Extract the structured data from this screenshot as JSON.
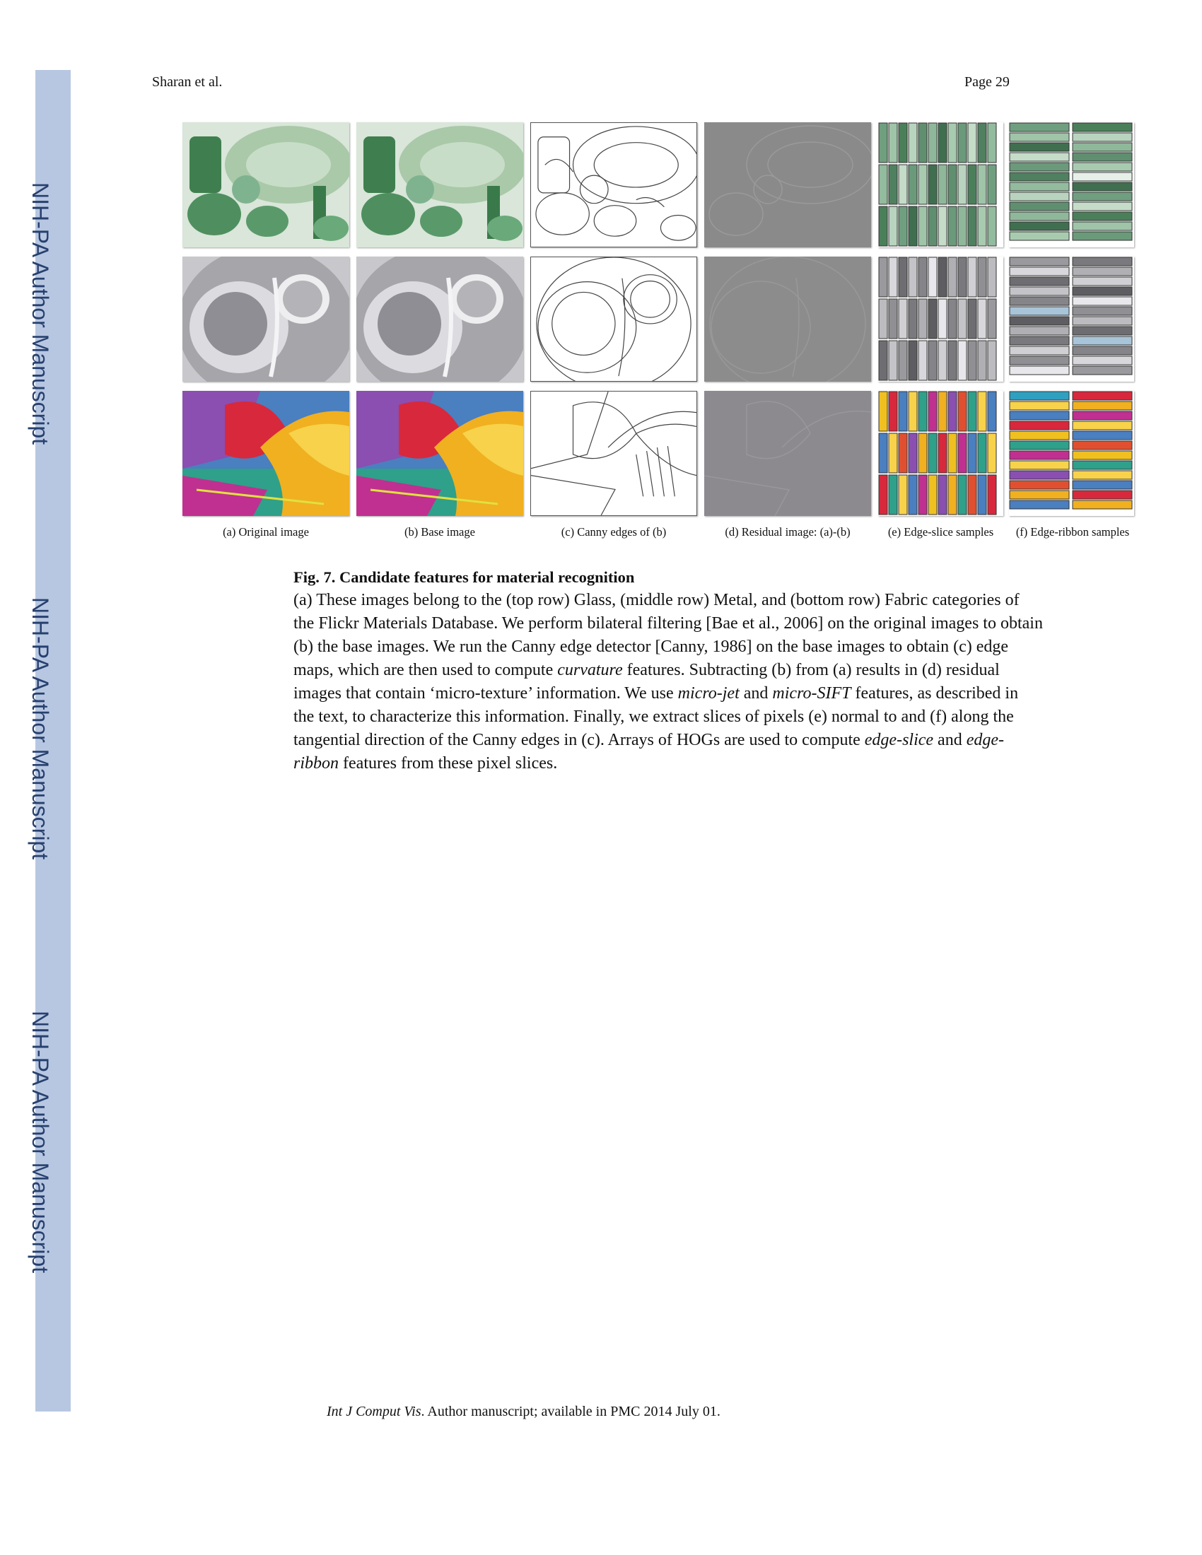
{
  "sidebar": {
    "labels": [
      "NIH-PA Author Manuscript",
      "NIH-PA Author Manuscript",
      "NIH-PA Author Manuscript"
    ],
    "band_color": "#b7c7e2",
    "text_color": "#27406e"
  },
  "header": {
    "authors": "Sharan et al.",
    "page": "Page 29"
  },
  "figure": {
    "rows": [
      "Glass",
      "Metal",
      "Fabric"
    ],
    "panel_labels": [
      "(a) Original image",
      "(b) Base image",
      "(c) Canny edges of (b)",
      "(d) Residual image: (a)-(b)",
      "(e) Edge-slice samples",
      "(f) Edge-ribbon samples"
    ]
  },
  "caption": {
    "title": "Fig. 7. Candidate features for material recognition",
    "segments": [
      "(a) These images belong to the (top row) Glass, (middle row) Metal, and (bottom row) Fabric categories of the Flickr Materials Database. We perform bilateral filtering [Bae et al., 2006] on the original images to obtain (b) the base images. We run the Canny edge detector [Canny, 1986] on the base images to obtain (c) edge maps, which are then used to compute ",
      "curvature",
      " features. Subtracting (b) from (a) results in (d) residual images that contain ‘micro-texture’ information. We use ",
      "micro-jet",
      " and ",
      "micro-SIFT",
      " features, as described in the text, to characterize this information. Finally, we extract slices of pixels (e) normal to and (f) along the tangential direction of the Canny edges in (c). Arrays of HOGs are used to compute ",
      "edge-slice",
      " and ",
      "edge-ribbon",
      " features from these pixel slices."
    ]
  },
  "footer": {
    "journal": "Int J Comput Vis",
    "text": ". Author manuscript; available in PMC 2014 July 01."
  }
}
